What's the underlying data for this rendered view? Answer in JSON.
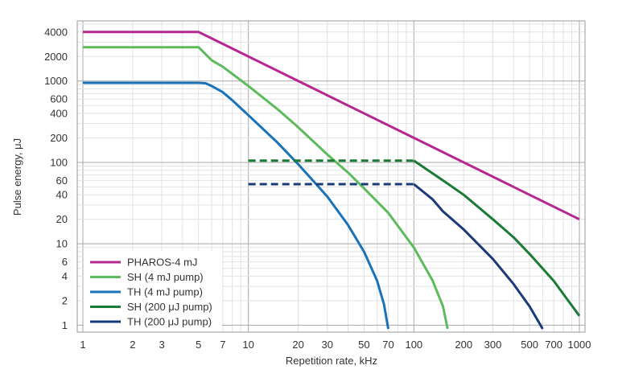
{
  "chart_data": {
    "type": "line",
    "xscale": "log",
    "yscale": "log",
    "xlim": [
      1,
      1000
    ],
    "ylim": [
      0.9,
      5000
    ],
    "xlabel": "Repetition rate, kHz",
    "ylabel": "Pulse energy, μJ",
    "x_ticks": [
      1,
      2,
      3,
      5,
      7,
      10,
      20,
      30,
      50,
      70,
      100,
      200,
      300,
      500,
      700,
      1000
    ],
    "y_ticks": [
      1,
      2,
      4,
      6,
      10,
      20,
      40,
      60,
      100,
      200,
      400,
      600,
      1000,
      2000,
      4000
    ],
    "grid": true,
    "legend_position": "bottom-left",
    "series": [
      {
        "name": "PHAROS-4 mJ",
        "color": "#b5288f",
        "dash": false,
        "x": [
          1,
          5,
          1000
        ],
        "y": [
          4000,
          4000,
          20
        ]
      },
      {
        "name": "SH (4 mJ pump)",
        "color": "#5dbb5d",
        "dash": false,
        "x": [
          1,
          5,
          6,
          7,
          10,
          15,
          20,
          30,
          40,
          50,
          70,
          100,
          130,
          150,
          160
        ],
        "y": [
          2600,
          2600,
          1800,
          1500,
          870,
          450,
          270,
          125,
          75,
          48,
          24,
          9,
          3.5,
          1.7,
          0.9
        ]
      },
      {
        "name": "TH (4 mJ pump)",
        "color": "#1a72b8",
        "dash": false,
        "x": [
          1,
          5,
          5.5,
          6,
          7,
          8,
          10,
          15,
          20,
          30,
          40,
          50,
          60,
          66,
          70
        ],
        "y": [
          950,
          950,
          940,
          870,
          730,
          580,
          380,
          175,
          95,
          38,
          17,
          8,
          3.5,
          1.8,
          0.9
        ]
      },
      {
        "name": "SH (200 μJ pump)",
        "color": "#1a7a36",
        "dash": false,
        "x": [
          100,
          150,
          200,
          300,
          400,
          500,
          700,
          1000
        ],
        "y": [
          105,
          60,
          40,
          20,
          12,
          7.5,
          3.5,
          1.3
        ]
      },
      {
        "name": "TH (200 μJ pump)",
        "color": "#1a3a78",
        "dash": false,
        "x": [
          100,
          130,
          150,
          200,
          300,
          400,
          500,
          600
        ],
        "y": [
          54,
          35,
          25,
          15,
          6.5,
          3.2,
          1.7,
          0.9
        ]
      },
      {
        "color": "#1a7a36",
        "dash": true,
        "x": [
          10,
          100
        ],
        "y": [
          105,
          105
        ]
      },
      {
        "color": "#1a3a78",
        "dash": true,
        "x": [
          10,
          100
        ],
        "y": [
          54,
          54
        ]
      }
    ]
  }
}
